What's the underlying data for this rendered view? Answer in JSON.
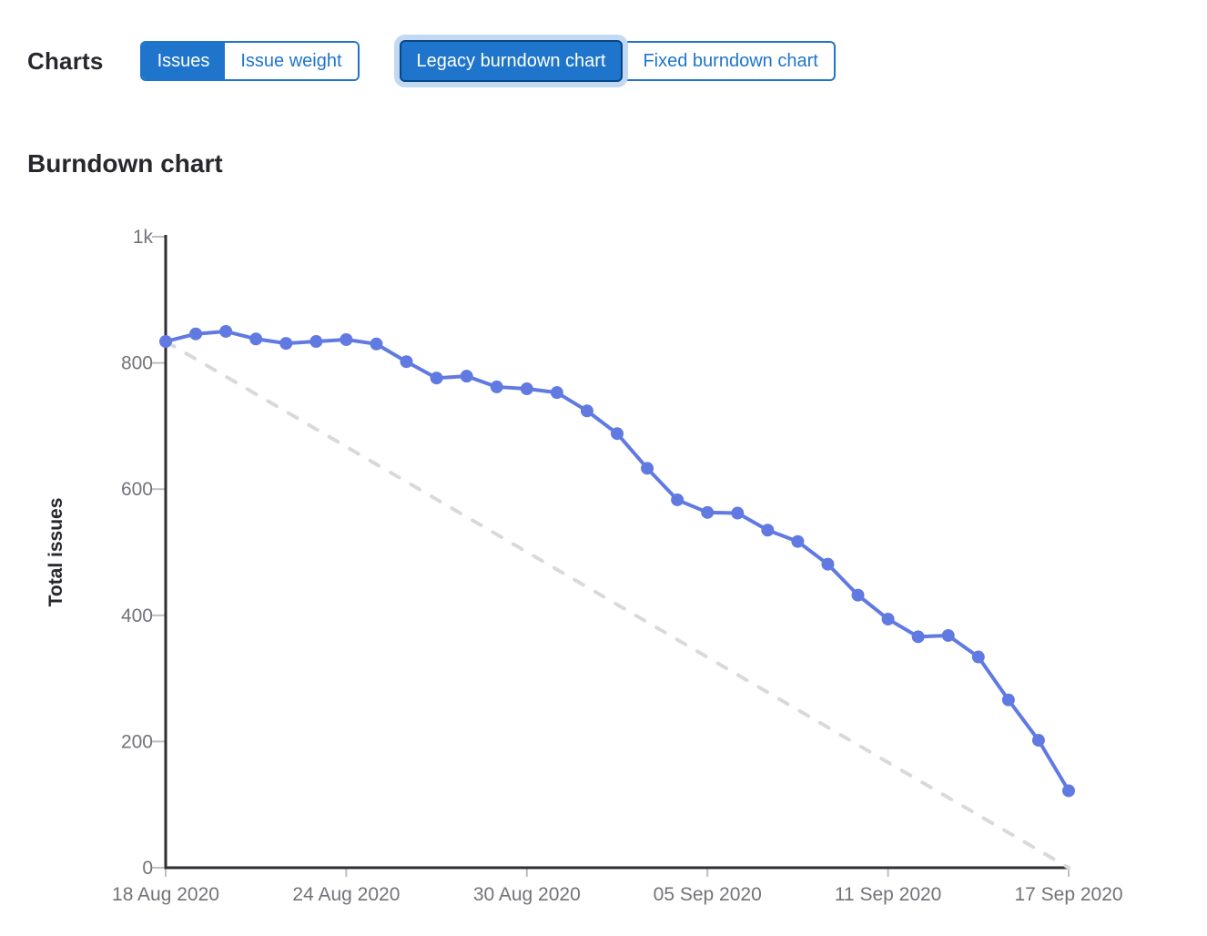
{
  "header": {
    "title": "Charts",
    "type_toggle": [
      {
        "label": "Issues",
        "selected": true
      },
      {
        "label": "Issue weight",
        "selected": false
      }
    ],
    "version_toggle": [
      {
        "label": "Legacy burndown chart",
        "selected": true,
        "focused": true
      },
      {
        "label": "Fixed burndown chart",
        "selected": false
      }
    ]
  },
  "colors": {
    "accent_blue": "#1f75cb",
    "selected_button_border": "#064787",
    "focus_ring": "#c3d8f1",
    "series_line": "#617ae2",
    "guideline": "#d9d9d9",
    "axis": "#2e2e33",
    "tick_mark": "#bfbfbf",
    "tick_text": "#737278",
    "heading_text": "#28272d"
  },
  "chart_data": {
    "type": "line",
    "title": "Burndown chart",
    "xlabel": "",
    "ylabel": "Total issues",
    "ylim": [
      0,
      1000
    ],
    "xlim_days": [
      0,
      30
    ],
    "grid": false,
    "legend": "none",
    "y_ticks": [
      {
        "value": 0,
        "label": "0"
      },
      {
        "value": 200,
        "label": "200"
      },
      {
        "value": 400,
        "label": "400"
      },
      {
        "value": 600,
        "label": "600"
      },
      {
        "value": 800,
        "label": "800"
      },
      {
        "value": 1000,
        "label": "1k"
      }
    ],
    "x_ticks": [
      {
        "day": 0,
        "label": "18 Aug 2020"
      },
      {
        "day": 6,
        "label": "24 Aug 2020"
      },
      {
        "day": 12,
        "label": "30 Aug 2020"
      },
      {
        "day": 18,
        "label": "05 Sep 2020"
      },
      {
        "day": 24,
        "label": "11 Sep 2020"
      },
      {
        "day": 30,
        "label": "17 Sep 2020"
      }
    ],
    "series": [
      {
        "name": "total-issues-remaining",
        "style": "solid",
        "marker": true,
        "color": "#617ae2",
        "x_start_day": 0,
        "x_step_days": 1,
        "values": [
          834,
          846,
          850,
          838,
          831,
          834,
          837,
          830,
          802,
          776,
          779,
          762,
          759,
          753,
          724,
          688,
          633,
          583,
          563,
          562,
          535,
          517,
          481,
          432,
          394,
          366,
          368,
          334,
          266,
          202,
          122
        ]
      },
      {
        "name": "ideal-guideline",
        "style": "dashed",
        "marker": false,
        "color": "#d9d9d9",
        "points": [
          [
            0,
            834
          ],
          [
            30,
            0
          ]
        ]
      }
    ]
  }
}
